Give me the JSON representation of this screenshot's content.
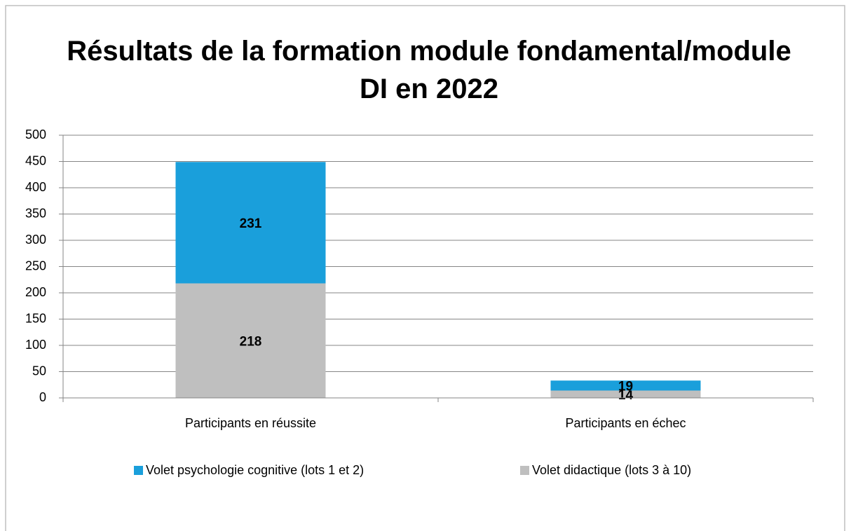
{
  "chart_data": {
    "type": "stacked_bar",
    "title": "Résultats de la formation module fondamental/module DI en 2022",
    "categories": [
      "Participants en réussite",
      "Participants en échec"
    ],
    "series": [
      {
        "name": "Volet psychologie cognitive (lots 1 et 2)",
        "color": "#1a9fdb",
        "values": [
          231,
          19
        ]
      },
      {
        "name": "Volet didactique (lots 3 à 10)",
        "color": "#bfbfbf",
        "values": [
          218,
          14
        ]
      }
    ],
    "ylim": [
      0,
      500
    ],
    "yticks": [
      0,
      50,
      100,
      150,
      200,
      250,
      300,
      350,
      400,
      450,
      500
    ],
    "grid": true,
    "legend": "bottom"
  }
}
